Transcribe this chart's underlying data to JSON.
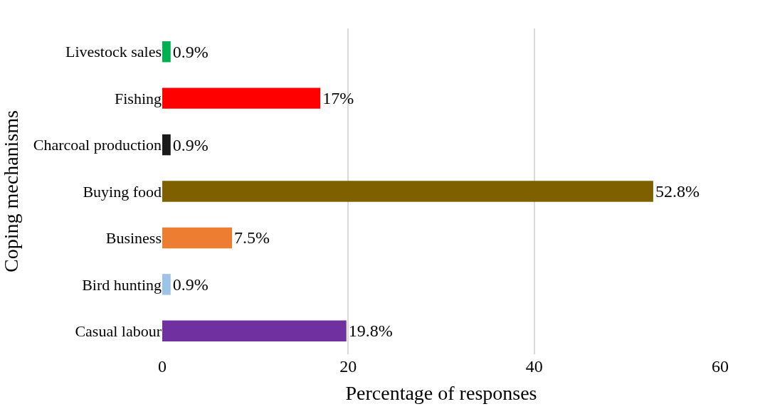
{
  "chart_data": {
    "type": "bar",
    "orientation": "horizontal",
    "categories": [
      "Livestock sales",
      "Fishing",
      "Charcoal production",
      "Buying food",
      "Business",
      "Bird hunting",
      "Casual labour"
    ],
    "values": [
      0.9,
      17,
      0.9,
      52.8,
      7.5,
      0.9,
      19.8
    ],
    "colors": [
      "#00b050",
      "#ff0000",
      "#1a1a1a",
      "#7f6000",
      "#ed7d31",
      "#9dc3e6",
      "#7030a0"
    ],
    "value_labels": [
      "0.9%",
      "17%",
      "0.9%",
      "52.8%",
      "7.5%",
      "0.9%",
      "19.8%"
    ],
    "xlabel": "Percentage of responses",
    "ylabel": "Coping mechanisms",
    "xlim": [
      0,
      60
    ],
    "xticks": [
      0,
      20,
      40,
      60
    ],
    "grid": "x"
  }
}
